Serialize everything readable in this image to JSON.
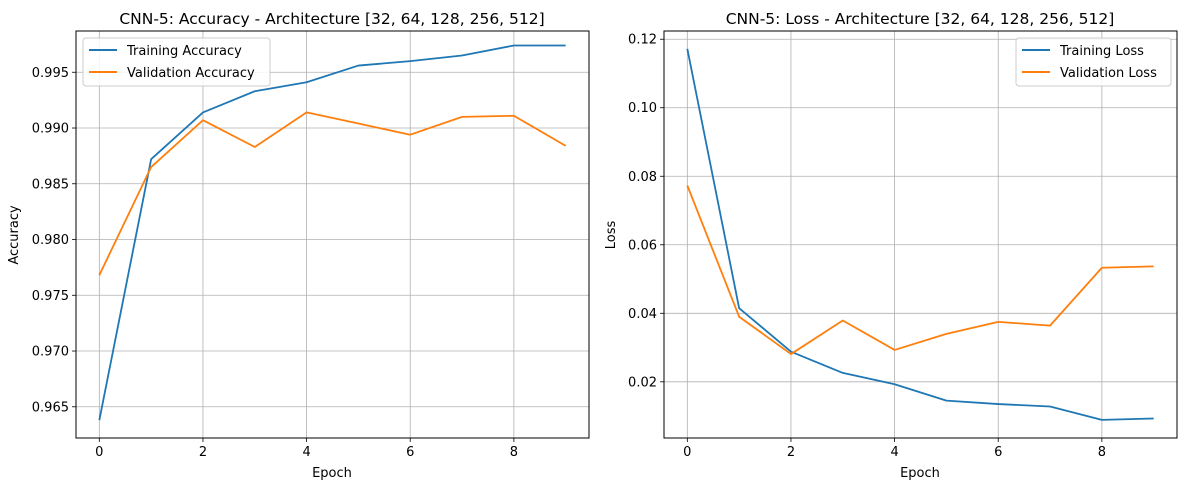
{
  "chart_data": [
    {
      "type": "line",
      "title": "CNN-5: Accuracy - Architecture [32, 64, 128, 256, 512]",
      "xlabel": "Epoch",
      "ylabel": "Accuracy",
      "x": [
        0,
        1,
        2,
        3,
        4,
        5,
        6,
        7,
        8,
        9
      ],
      "xlim": [
        -0.45,
        9.45
      ],
      "ylim": [
        0.9622,
        0.9987
      ],
      "xticks": [
        0,
        2,
        4,
        6,
        8
      ],
      "xtick_labels": [
        "0",
        "2",
        "4",
        "6",
        "8"
      ],
      "yticks": [
        0.965,
        0.97,
        0.975,
        0.98,
        0.985,
        0.99,
        0.995
      ],
      "ytick_labels": [
        "0.965",
        "0.970",
        "0.975",
        "0.980",
        "0.985",
        "0.990",
        "0.995"
      ],
      "grid": true,
      "legend_position": "top-left",
      "series": [
        {
          "name": "Training Accuracy",
          "color": "#1f77b4",
          "values": [
            0.9638,
            0.9872,
            0.9914,
            0.9933,
            0.9941,
            0.9956,
            0.996,
            0.9965,
            0.9974,
            0.9974
          ]
        },
        {
          "name": "Validation Accuracy",
          "color": "#ff7f0e",
          "values": [
            0.9768,
            0.9865,
            0.9907,
            0.9883,
            0.9914,
            0.9904,
            0.9894,
            0.991,
            0.9911,
            0.9884
          ]
        }
      ]
    },
    {
      "type": "line",
      "title": "CNN-5: Loss - Architecture [32, 64, 128, 256, 512]",
      "xlabel": "Epoch",
      "ylabel": "Loss",
      "x": [
        0,
        1,
        2,
        3,
        4,
        5,
        6,
        7,
        8,
        9
      ],
      "xlim": [
        -0.45,
        9.45
      ],
      "ylim": [
        0.0036,
        0.1224
      ],
      "xticks": [
        0,
        2,
        4,
        6,
        8
      ],
      "xtick_labels": [
        "0",
        "2",
        "4",
        "6",
        "8"
      ],
      "yticks": [
        0.02,
        0.04,
        0.06,
        0.08,
        0.1,
        0.12
      ],
      "ytick_labels": [
        "0.02",
        "0.04",
        "0.06",
        "0.08",
        "0.10",
        "0.12"
      ],
      "grid": true,
      "legend_position": "top-right",
      "series": [
        {
          "name": "Training Loss",
          "color": "#1f77b4",
          "values": [
            0.1172,
            0.0415,
            0.0288,
            0.0226,
            0.0193,
            0.0145,
            0.0135,
            0.0128,
            0.0089,
            0.0093
          ]
        },
        {
          "name": "Validation Loss",
          "color": "#ff7f0e",
          "values": [
            0.0773,
            0.039,
            0.0281,
            0.0379,
            0.0293,
            0.034,
            0.0375,
            0.0364,
            0.0533,
            0.0537
          ]
        }
      ]
    }
  ]
}
